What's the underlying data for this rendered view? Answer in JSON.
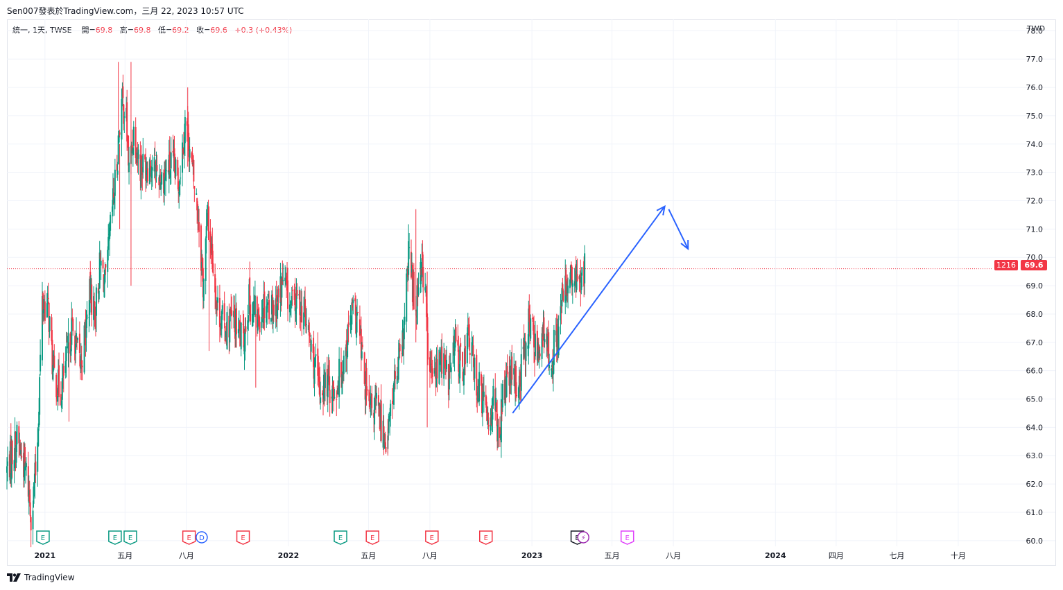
{
  "header": {
    "text": "Sen007發表於TradingView.com，三月 22, 2023 10:57 UTC"
  },
  "legend": {
    "symbol_label": "統一, 1天, TWSE",
    "open_label": "開=",
    "open_value": "69.8",
    "high_label": "高=",
    "high_value": "69.8",
    "low_label": "低=",
    "low_value": "69.2",
    "close_label": "收=",
    "close_value": "69.6",
    "change": "+0.3 (+0.43%)"
  },
  "currency": "TWD",
  "price_tags": {
    "countdown": "1216",
    "last_price": "69.6"
  },
  "footer": {
    "brand": "TradingView",
    "logo_icon": "tradingview-logo-icon"
  },
  "colors": {
    "up": "#089981",
    "down": "#f23645",
    "drawing": "#2962ff",
    "grid": "#f0f3fa"
  },
  "chart_data": {
    "type": "candlestick",
    "symbol": "統一",
    "interval": "1天",
    "exchange": "TWSE",
    "ylim": [
      59.8,
      78.4
    ],
    "yticks": [
      60.0,
      61.0,
      62.0,
      63.0,
      64.0,
      65.0,
      66.0,
      67.0,
      68.0,
      69.0,
      70.0,
      71.0,
      72.0,
      73.0,
      74.0,
      75.0,
      76.0,
      77.0,
      78.0
    ],
    "xlim": [
      "2020-11-05",
      "2024-11-20"
    ],
    "xticks": [
      {
        "date": "2021-01-01",
        "label": "2021",
        "bold": true
      },
      {
        "date": "2021-05-01",
        "label": "五月",
        "bold": false
      },
      {
        "date": "2021-08-01",
        "label": "八月",
        "bold": false
      },
      {
        "date": "2022-01-01",
        "label": "2022",
        "bold": true
      },
      {
        "date": "2022-05-01",
        "label": "五月",
        "bold": false
      },
      {
        "date": "2022-08-01",
        "label": "八月",
        "bold": false
      },
      {
        "date": "2023-01-01",
        "label": "2023",
        "bold": true
      },
      {
        "date": "2023-05-01",
        "label": "五月",
        "bold": false
      },
      {
        "date": "2023-08-01",
        "label": "八月",
        "bold": false
      },
      {
        "date": "2024-01-01",
        "label": "2024",
        "bold": true
      },
      {
        "date": "2024-04-01",
        "label": "四月",
        "bold": false
      },
      {
        "date": "2024-07-01",
        "label": "七月",
        "bold": false
      },
      {
        "date": "2024-10-01",
        "label": "十月",
        "bold": false
      }
    ],
    "close_path": [
      [
        "2020-11-05",
        62.5
      ],
      [
        "2020-11-20",
        63.6
      ],
      [
        "2020-12-05",
        62.3
      ],
      [
        "2020-12-12",
        60.8
      ],
      [
        "2020-12-20",
        63.0
      ],
      [
        "2020-12-28",
        68.4
      ],
      [
        "2021-01-06",
        68.2
      ],
      [
        "2021-01-13",
        66.0
      ],
      [
        "2021-01-24",
        65.2
      ],
      [
        "2021-02-02",
        66.3
      ],
      [
        "2021-02-10",
        67.5
      ],
      [
        "2021-02-23",
        66.2
      ],
      [
        "2021-03-03",
        67.4
      ],
      [
        "2021-03-10",
        68.8
      ],
      [
        "2021-03-17",
        68.0
      ],
      [
        "2021-03-25",
        69.8
      ],
      [
        "2021-04-02",
        69.0
      ],
      [
        "2021-04-11",
        71.5
      ],
      [
        "2021-04-18",
        73.0
      ],
      [
        "2021-04-25",
        75.5
      ],
      [
        "2021-05-02",
        75.2
      ],
      [
        "2021-05-07",
        73.0
      ],
      [
        "2021-05-14",
        74.5
      ],
      [
        "2021-05-24",
        73.2
      ],
      [
        "2021-06-08",
        73.4
      ],
      [
        "2021-06-25",
        72.8
      ],
      [
        "2021-07-10",
        73.3
      ],
      [
        "2021-07-20",
        72.6
      ],
      [
        "2021-07-31",
        75.0
      ],
      [
        "2021-08-10",
        73.0
      ],
      [
        "2021-08-19",
        71.5
      ],
      [
        "2021-08-26",
        69.0
      ],
      [
        "2021-09-02",
        71.5
      ],
      [
        "2021-09-09",
        70.0
      ],
      [
        "2021-09-16",
        68.3
      ],
      [
        "2021-09-27",
        67.5
      ],
      [
        "2021-10-10",
        67.8
      ],
      [
        "2021-10-25",
        67.0
      ],
      [
        "2021-11-02",
        68.5
      ],
      [
        "2021-11-16",
        67.8
      ],
      [
        "2021-11-27",
        68.5
      ],
      [
        "2021-12-12",
        68.2
      ],
      [
        "2021-12-24",
        69.2
      ],
      [
        "2022-01-05",
        68.2
      ],
      [
        "2022-01-16",
        68.5
      ],
      [
        "2022-01-27",
        67.8
      ],
      [
        "2022-02-06",
        66.5
      ],
      [
        "2022-02-17",
        65.3
      ],
      [
        "2022-03-01",
        65.6
      ],
      [
        "2022-03-11",
        65.2
      ],
      [
        "2022-03-24",
        66.3
      ],
      [
        "2022-04-06",
        68.0
      ],
      [
        "2022-04-15",
        67.8
      ],
      [
        "2022-04-23",
        66.0
      ],
      [
        "2022-05-02",
        64.5
      ],
      [
        "2022-05-12",
        64.8
      ],
      [
        "2022-05-22",
        64.0
      ],
      [
        "2022-05-29",
        63.5
      ],
      [
        "2022-06-08",
        65.5
      ],
      [
        "2022-06-20",
        66.5
      ],
      [
        "2022-07-01",
        70.3
      ],
      [
        "2022-07-10",
        68.0
      ],
      [
        "2022-07-18",
        70.0
      ],
      [
        "2022-07-25",
        69.0
      ],
      [
        "2022-07-30",
        66.0
      ],
      [
        "2022-08-08",
        65.8
      ],
      [
        "2022-08-18",
        66.5
      ],
      [
        "2022-08-29",
        65.7
      ],
      [
        "2022-09-08",
        67.0
      ],
      [
        "2022-09-18",
        66.0
      ],
      [
        "2022-09-28",
        67.3
      ],
      [
        "2022-10-08",
        65.8
      ],
      [
        "2022-10-18",
        65.0
      ],
      [
        "2022-10-29",
        64.3
      ],
      [
        "2022-11-05",
        65.2
      ],
      [
        "2022-11-11",
        63.6
      ],
      [
        "2022-11-20",
        65.3
      ],
      [
        "2022-11-30",
        65.8
      ],
      [
        "2022-12-11",
        65.4
      ],
      [
        "2022-12-20",
        66.6
      ],
      [
        "2022-12-28",
        67.8
      ],
      [
        "2023-01-06",
        66.8
      ],
      [
        "2023-01-17",
        67.2
      ],
      [
        "2023-01-29",
        66.4
      ],
      [
        "2023-02-08",
        67.2
      ],
      [
        "2023-02-15",
        68.4
      ],
      [
        "2023-02-22",
        69.1
      ],
      [
        "2023-03-01",
        69.2
      ],
      [
        "2023-03-07",
        69.0
      ],
      [
        "2023-03-13",
        69.3
      ],
      [
        "2023-03-17",
        69.3
      ],
      [
        "2023-03-20",
        69.3
      ],
      [
        "2023-03-21",
        69.6
      ]
    ],
    "spikes": [
      {
        "date": "2021-04-21",
        "high": 76.9,
        "low": 74.5
      },
      {
        "date": "2021-04-23",
        "high": 74.0,
        "low": 71.0
      },
      {
        "date": "2021-05-10",
        "high": 76.9,
        "low": 69.0
      },
      {
        "date": "2021-02-06",
        "high": 67.0,
        "low": 64.2
      },
      {
        "date": "2021-08-03",
        "high": 76.0,
        "low": 73.2
      },
      {
        "date": "2021-09-04",
        "high": 71.8,
        "low": 66.7
      },
      {
        "date": "2021-11-13",
        "high": 68.0,
        "low": 65.4
      },
      {
        "date": "2022-07-11",
        "high": 71.7,
        "low": 67.0
      },
      {
        "date": "2022-07-28",
        "high": 69.5,
        "low": 64.0
      },
      {
        "date": "2022-05-30",
        "high": 64.3,
        "low": 63.0
      },
      {
        "date": "2022-11-12",
        "high": 64.3,
        "low": 63.3
      }
    ],
    "last_price": 69.6,
    "event_markers": [
      {
        "date": "2020-12-29",
        "letter": "E",
        "color": "#089981"
      },
      {
        "date": "2021-04-16",
        "letter": "E",
        "color": "#089981"
      },
      {
        "date": "2021-05-09",
        "letter": "E",
        "color": "#089981"
      },
      {
        "date": "2021-08-05",
        "letter": "E",
        "color": "#f23645"
      },
      {
        "date": "2021-08-24",
        "letter": "D",
        "color": "#2962ff"
      },
      {
        "date": "2021-10-25",
        "letter": "E",
        "color": "#f23645"
      },
      {
        "date": "2022-03-20",
        "letter": "E",
        "color": "#089981"
      },
      {
        "date": "2022-05-07",
        "letter": "E",
        "color": "#f23645"
      },
      {
        "date": "2022-08-04",
        "letter": "E",
        "color": "#f23645"
      },
      {
        "date": "2022-10-24",
        "letter": "E",
        "color": "#f23645"
      },
      {
        "date": "2023-03-10",
        "letter": "E",
        "color": "#131722"
      },
      {
        "date": "2023-03-19",
        "letter": "⚡",
        "color": "#9c27b0"
      },
      {
        "date": "2023-05-24",
        "letter": "E",
        "color": "#e040fb"
      }
    ],
    "drawings": [
      {
        "type": "arrow",
        "from": {
          "date": "2022-12-03",
          "price": 64.5
        },
        "to": {
          "date": "2023-07-19",
          "price": 71.8
        }
      },
      {
        "type": "arrow",
        "from": {
          "date": "2023-07-25",
          "price": 71.7
        },
        "to": {
          "date": "2023-08-23",
          "price": 70.3
        }
      }
    ]
  }
}
